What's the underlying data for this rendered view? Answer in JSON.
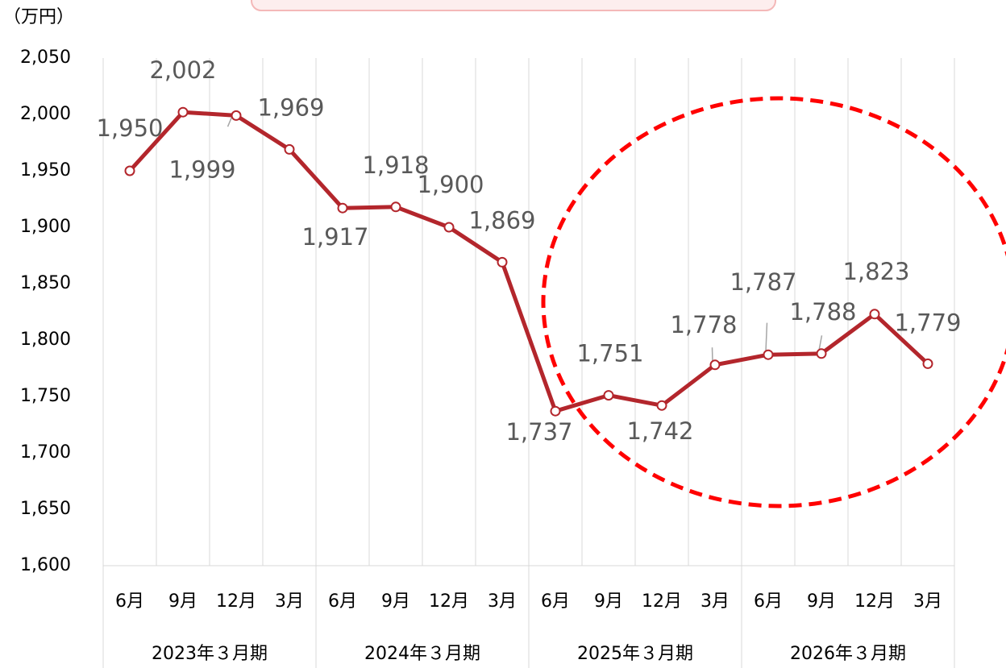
{
  "chart_data": {
    "type": "line",
    "unit_label": "（万円）",
    "categories": [
      "6月",
      "9月",
      "12月",
      "3月",
      "6月",
      "9月",
      "12月",
      "3月",
      "6月",
      "9月",
      "12月",
      "3月",
      "6月",
      "9月",
      "12月",
      "3月"
    ],
    "groups": [
      "2023年３月期",
      "2024年３月期",
      "2025年３月期",
      "2026年３月期"
    ],
    "series": [
      {
        "color": "#b3262c",
        "values": [
          1950,
          2002,
          1999,
          1969,
          1917,
          1918,
          1900,
          1869,
          1737,
          1751,
          1742,
          1778,
          1787,
          1788,
          1823,
          1779
        ],
        "value_labels": [
          "1,950",
          "2,002",
          "1,999",
          "1,969",
          "1,917",
          "1,918",
          "1,900",
          "1,869",
          "1,737",
          "1,751",
          "1,742",
          "1,778",
          "1,787",
          "1,788",
          "1,823",
          "1,779"
        ]
      }
    ],
    "ylim": [
      1600,
      2050
    ],
    "yticks": [
      {
        "value": 1600,
        "label": "1,600"
      },
      {
        "value": 1650,
        "label": "1,650"
      },
      {
        "value": 1700,
        "label": "1,700"
      },
      {
        "value": 1750,
        "label": "1,750"
      },
      {
        "value": 1800,
        "label": "1,800"
      },
      {
        "value": 1850,
        "label": "1,850"
      },
      {
        "value": 1900,
        "label": "1,900"
      },
      {
        "value": 1950,
        "label": "1,950"
      },
      {
        "value": 2000,
        "label": "2,000"
      },
      {
        "value": 2050,
        "label": "2,050"
      }
    ],
    "grid": true
  }
}
